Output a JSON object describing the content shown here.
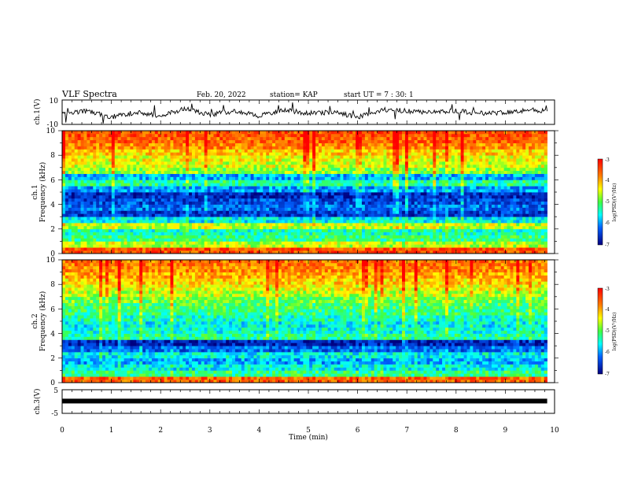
{
  "header": {
    "title": "VLF Spectra",
    "date": "Feb. 20, 2022",
    "station": "station= KAP",
    "start_ut": "start  UT =   7 : 30: 1"
  },
  "chart_data": [
    {
      "type": "line",
      "panel": "ch1-waveform",
      "ylabel": "ch.1(V)",
      "ylim": [
        -10,
        10
      ],
      "ytick_labels": [
        "10",
        "-10"
      ],
      "xlim": [
        0,
        10
      ],
      "series": [
        {
          "x": [
            0,
            0.5,
            1.0,
            1.5,
            2.0,
            2.5,
            3.0,
            3.5,
            4.0,
            4.5,
            5.0,
            5.5,
            6.0,
            6.5,
            7.0,
            7.5,
            8.0,
            8.5,
            9.0,
            9.5,
            9.85
          ],
          "values": [
            -2,
            1,
            -4,
            0,
            -3,
            3,
            -2,
            1,
            -3,
            2,
            -1,
            0,
            -4,
            2,
            1,
            0,
            1,
            -1,
            0,
            2,
            1
          ]
        }
      ]
    },
    {
      "type": "heatmap",
      "panel": "ch1-spectrogram",
      "ylabel": "ch.1",
      "ylabel2": "Frequency (kHz)",
      "ylim": [
        0,
        10
      ],
      "ytick_labels": [
        "0",
        "2",
        "4",
        "6",
        "8",
        "10"
      ],
      "xlim": [
        0,
        10
      ],
      "data_extent_min": 9.85,
      "color_range": [
        -7,
        -3
      ],
      "colorbar_label": "log(PSD)(V²/Hz)",
      "colorbar_ticks": [
        "-3",
        "-4",
        "-5",
        "-6",
        "-7"
      ],
      "freq_khz": [
        0,
        0.5,
        1.0,
        1.5,
        2.0,
        2.5,
        3.0,
        3.5,
        4.0,
        4.5,
        5.0,
        5.5,
        6.0,
        6.5,
        7.0,
        7.5,
        8.0,
        8.5,
        9.0,
        9.5
      ],
      "log_psd": [
        -3.5,
        -4.6,
        -5.2,
        -5.4,
        -4.6,
        -5.6,
        -6.5,
        -6.2,
        -6.4,
        -6.6,
        -6.0,
        -5.3,
        -5.9,
        -4.8,
        -4.5,
        -4.4,
        -4.2,
        -3.8,
        -3.6,
        -3.5
      ]
    },
    {
      "type": "heatmap",
      "panel": "ch2-spectrogram",
      "ylabel": "ch.2",
      "ylabel2": "Frequency (kHz)",
      "ylim": [
        0,
        10
      ],
      "ytick_labels": [
        "0",
        "2",
        "4",
        "6",
        "8",
        "10"
      ],
      "xlim": [
        0,
        10
      ],
      "data_extent_min": 9.85,
      "color_range": [
        -7,
        -3
      ],
      "colorbar_label": "log(PSD)(V²/Hz)",
      "colorbar_ticks": [
        "-3",
        "-4",
        "-5",
        "-6",
        "-7"
      ],
      "freq_khz": [
        0,
        0.5,
        1.0,
        1.5,
        2.0,
        2.5,
        3.0,
        3.5,
        4.0,
        4.5,
        5.0,
        5.5,
        6.0,
        6.5,
        7.0,
        7.5,
        8.0,
        8.5,
        9.0,
        9.5
      ],
      "log_psd": [
        -3.6,
        -5.2,
        -5.6,
        -5.9,
        -5.6,
        -6.2,
        -6.7,
        -5.3,
        -5.5,
        -5.6,
        -5.4,
        -5.2,
        -5.1,
        -4.9,
        -4.6,
        -4.4,
        -4.2,
        -4.0,
        -3.8,
        -3.7
      ]
    },
    {
      "type": "line",
      "panel": "ch3-waveform",
      "ylabel": "ch.3(V)",
      "ylim": [
        -5,
        5
      ],
      "ytick_labels": [
        "5",
        "-5"
      ],
      "xlim": [
        0,
        10
      ],
      "xlabel": "Time  (min)",
      "xtick_labels": [
        "0",
        "1",
        "2",
        "3",
        "4",
        "5",
        "6",
        "7",
        "8",
        "9",
        "10"
      ],
      "series": [
        {
          "x": [
            0,
            9.85
          ],
          "values": [
            0.2,
            0.2
          ]
        }
      ]
    }
  ]
}
